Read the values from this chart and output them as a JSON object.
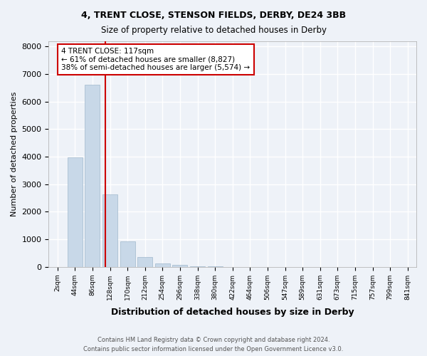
{
  "title1": "4, TRENT CLOSE, STENSON FIELDS, DERBY, DE24 3BB",
  "title2": "Size of property relative to detached houses in Derby",
  "xlabel": "Distribution of detached houses by size in Derby",
  "ylabel": "Number of detached properties",
  "footnote": "Contains HM Land Registry data © Crown copyright and database right 2024.\nContains public sector information licensed under the Open Government Licence v3.0.",
  "bin_labels": [
    "2sqm",
    "44sqm",
    "86sqm",
    "128sqm",
    "170sqm",
    "212sqm",
    "254sqm",
    "296sqm",
    "338sqm",
    "380sqm",
    "422sqm",
    "464sqm",
    "506sqm",
    "547sqm",
    "589sqm",
    "631sqm",
    "673sqm",
    "715sqm",
    "757sqm",
    "799sqm",
    "841sqm"
  ],
  "bar_values": [
    0,
    3980,
    6600,
    2620,
    920,
    350,
    130,
    60,
    20,
    10,
    5,
    0,
    0,
    0,
    0,
    0,
    0,
    0,
    0,
    0,
    0
  ],
  "bar_color": "#c8d8e8",
  "bar_edge_color": "#a0b8cc",
  "bg_color": "#eef2f8",
  "grid_color": "#ffffff",
  "vline_x_index": 2.72,
  "vline_color": "#cc0000",
  "annotation_text": "4 TRENT CLOSE: 117sqm\n← 61% of detached houses are smaller (8,827)\n38% of semi-detached houses are larger (5,574) →",
  "annotation_box_color": "#cc0000",
  "ylim": [
    0,
    8200
  ],
  "yticks": [
    0,
    1000,
    2000,
    3000,
    4000,
    5000,
    6000,
    7000,
    8000
  ]
}
